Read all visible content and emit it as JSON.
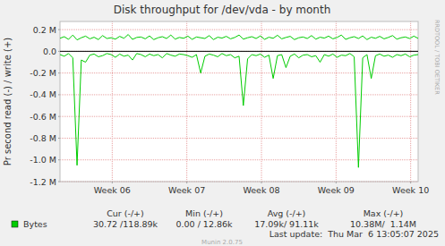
{
  "chart_data": {
    "type": "line",
    "title": "Disk throughput for /dev/vda - by month",
    "y_label": "Pr second read (-) / write (+)",
    "watermark": "RRDTOOL / TOBI OETIKER",
    "credit": "Munin 2.0.75",
    "last_update": "Last update:  Thu Mar  6 13:05:07 2025",
    "stats": {
      "headers": [
        "Cur (-/+)",
        "Min (-/+)",
        "Avg (-/+)",
        "Max (-/+)"
      ],
      "values": [
        "30.72 /118.89k",
        "0.00 / 12.86k",
        "17.09k/ 91.11k",
        "10.38M/  1.14M"
      ]
    },
    "grid": true,
    "xlim": [
      0,
      33.6
    ],
    "xticks": [
      {
        "value": 4.9,
        "label": "Week 06"
      },
      {
        "value": 11.9,
        "label": "Week 07"
      },
      {
        "value": 18.9,
        "label": "Week 08"
      },
      {
        "value": 25.9,
        "label": "Week 09"
      },
      {
        "value": 32.9,
        "label": "Week 10"
      }
    ],
    "ylim": [
      -1200000,
      275000
    ],
    "yticks": [
      {
        "value": 200000,
        "label": "0.2 M"
      },
      {
        "value": 0,
        "label": "0.0"
      },
      {
        "value": -200000,
        "label": "-0.2 M"
      },
      {
        "value": -400000,
        "label": "-0.4 M"
      },
      {
        "value": -600000,
        "label": "-0.6 M"
      },
      {
        "value": -800000,
        "label": "-0.8 M"
      },
      {
        "value": -1000000,
        "label": "-1.0 M"
      },
      {
        "value": -1200000,
        "label": "-1.2 M"
      }
    ],
    "x": [
      0,
      0.4,
      0.8,
      1.2,
      1.6,
      2,
      2.4,
      2.8,
      3.2,
      3.6,
      4,
      4.4,
      4.8,
      5.2,
      5.6,
      6,
      6.4,
      6.8,
      7.2,
      7.6,
      8,
      8.4,
      8.8,
      9.2,
      9.6,
      10,
      10.4,
      10.8,
      11.2,
      11.6,
      12,
      12.4,
      12.8,
      13.2,
      13.6,
      14,
      14.4,
      14.8,
      15.2,
      15.6,
      16,
      16.4,
      16.8,
      17.2,
      17.6,
      18,
      18.4,
      18.8,
      19.2,
      19.6,
      20,
      20.4,
      20.8,
      21.2,
      21.6,
      22,
      22.4,
      22.8,
      23.2,
      23.6,
      24,
      24.4,
      24.8,
      25.2,
      25.6,
      26,
      26.4,
      26.8,
      27.2,
      27.6,
      28,
      28.4,
      28.8,
      29.2,
      29.6,
      30,
      30.4,
      30.8,
      31.2,
      31.6,
      32,
      32.4,
      32.8,
      33.2,
      33.6
    ],
    "series": [
      {
        "name": "Bytes",
        "color": "#00cc00",
        "values": [
          120000,
          135000,
          110000,
          150000,
          105000,
          125000,
          140000,
          115000,
          130000,
          108000,
          145000,
          118000,
          125000,
          112000,
          138000,
          120000,
          155000,
          110000,
          128000,
          132000,
          115000,
          142000,
          108000,
          125000,
          135000,
          118000,
          150000,
          112000,
          128000,
          120000,
          140000,
          110000,
          132000,
          125000,
          118000,
          145000,
          108000,
          130000,
          122000,
          138000,
          115000,
          128000,
          150000,
          112000,
          125000,
          135000,
          118000,
          142000,
          110000,
          130000,
          120000,
          148000,
          115000,
          128000,
          138000,
          108000,
          125000,
          132000,
          118000,
          145000,
          112000,
          130000,
          122000,
          140000,
          115000,
          128000,
          150000,
          110000,
          125000,
          135000,
          118000,
          142000,
          108000,
          130000,
          120000,
          138000,
          115000,
          128000,
          145000,
          112000,
          125000,
          132000,
          118000,
          140000,
          119000
        ]
      },
      {
        "color": "#00cc00",
        "values": [
          -30000,
          -45000,
          -20000,
          -60000,
          -1050000,
          -80000,
          -100000,
          -35000,
          -25000,
          -50000,
          -40000,
          -20000,
          -30000,
          -55000,
          -25000,
          -45000,
          -35000,
          -80000,
          -20000,
          -30000,
          -50000,
          -25000,
          -40000,
          -30000,
          -60000,
          -20000,
          -35000,
          -45000,
          -25000,
          -30000,
          -40000,
          -55000,
          -30000,
          -200000,
          -45000,
          -25000,
          -35000,
          -50000,
          -20000,
          -40000,
          -30000,
          -60000,
          -45000,
          -500000,
          -70000,
          -30000,
          -40000,
          -25000,
          -55000,
          -35000,
          -250000,
          -40000,
          -30000,
          -150000,
          -45000,
          -25000,
          -60000,
          -35000,
          -30000,
          -50000,
          -40000,
          -100000,
          -30000,
          -45000,
          -25000,
          -55000,
          -35000,
          -40000,
          -20000,
          -50000,
          -1070000,
          -60000,
          -30000,
          -250000,
          -40000,
          -25000,
          -45000,
          -35000,
          -55000,
          -30000,
          -40000,
          -25000,
          -50000,
          -35000,
          -30000
        ]
      }
    ]
  }
}
